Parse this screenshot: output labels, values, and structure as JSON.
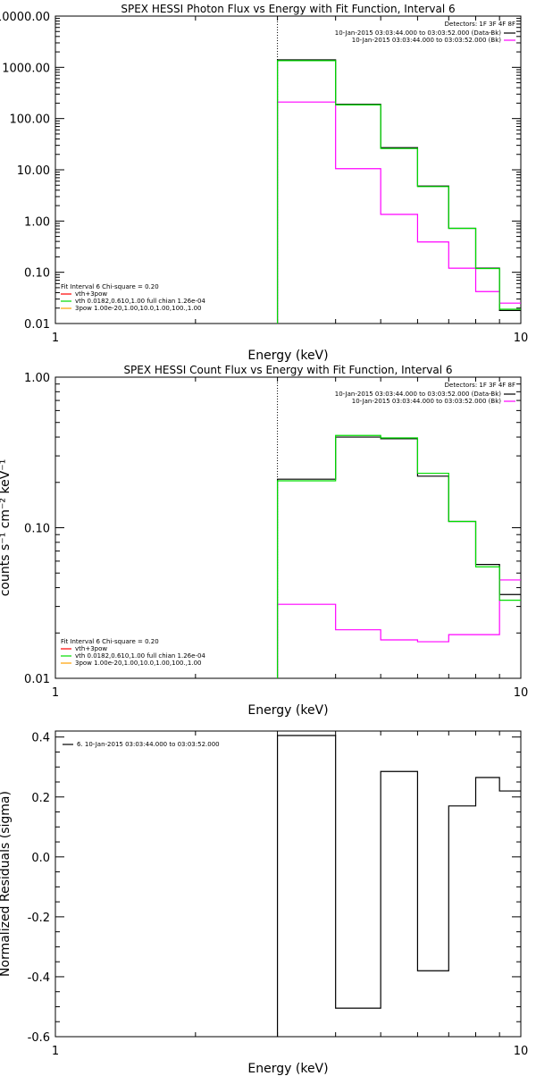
{
  "chart_data": [
    {
      "type": "line",
      "title": "SPEX HESSI Photon Flux vs Energy with Fit Function, Interval 6",
      "xlabel": "Energy (keV)",
      "ylabel": "",
      "xscale": "log",
      "yscale": "log",
      "xlim": [
        1,
        10
      ],
      "ylim": [
        0.01,
        10000
      ],
      "x_ticks": [
        {
          "v": 1,
          "label": "1"
        },
        {
          "v": 10,
          "label": "10"
        }
      ],
      "y_ticks": [
        {
          "v": 10000,
          "label": "10000.00"
        },
        {
          "v": 1000,
          "label": "1000.00"
        },
        {
          "v": 100,
          "label": "100.00"
        },
        {
          "v": 10,
          "label": "10.00"
        },
        {
          "v": 1,
          "label": "1.00"
        },
        {
          "v": 0.1,
          "label": "0.10"
        },
        {
          "v": 0.01,
          "label": "0.01"
        }
      ],
      "vline_x": 3,
      "bin_edges": [
        3,
        4,
        5,
        6,
        7,
        8,
        9,
        10
      ],
      "series": [
        {
          "name": "10-Jan-2015 03:03:44.000 to 03:03:52.000 (Data-Bk)",
          "color": "#000000",
          "values": [
            1400,
            190,
            27,
            4.8,
            0.72,
            0.12,
            0.018
          ]
        },
        {
          "name": "10-Jan-2015 03:03:44.000 to 03:03:52.000 (Bk)",
          "color": "#ff00ff",
          "values": [
            210,
            10.5,
            1.35,
            0.39,
            0.12,
            0.042,
            0.025
          ]
        },
        {
          "name": "vth 0.0182,0.610,1.00  full chian 1.26e-04",
          "color": "#00dd00",
          "values": [
            1350,
            185,
            26,
            4.7,
            0.72,
            0.118,
            0.019
          ]
        }
      ],
      "legend_topright": {
        "header": "Detectors: 1F 3F 4F 8F",
        "items": [
          {
            "text": "10-Jan-2015 03:03:44.000 to 03:03:52.000 (Data-Bk)",
            "color": "#000000"
          },
          {
            "text": "10-Jan-2015 03:03:44.000 to 03:03:52.000 (Bk)",
            "color": "#ff00ff"
          }
        ]
      },
      "legend_bottomleft": {
        "header": "Fit Interval 6   Chi-square = 0.20",
        "items": [
          {
            "text": "vth+3pow",
            "color": "#ff0000"
          },
          {
            "text": "vth 0.0182,0.610,1.00  full chian 1.26e-04",
            "color": "#00dd00"
          },
          {
            "text": "3pow 1.00e-20,1.00,10.0,1.00,100.,1.00",
            "color": "#ffa000"
          }
        ]
      }
    },
    {
      "type": "line",
      "title": "SPEX HESSI Count Flux vs Energy with Fit Function, Interval 6",
      "xlabel": "Energy (keV)",
      "ylabel": "counts s⁻¹ cm⁻² keV⁻¹",
      "xscale": "log",
      "yscale": "log",
      "xlim": [
        1,
        10
      ],
      "ylim": [
        0.01,
        1
      ],
      "x_ticks": [
        {
          "v": 1,
          "label": "1"
        },
        {
          "v": 10,
          "label": "10"
        }
      ],
      "y_ticks": [
        {
          "v": 1,
          "label": "1.00"
        },
        {
          "v": 0.1,
          "label": "0.10"
        },
        {
          "v": 0.01,
          "label": "0.01"
        }
      ],
      "vline_x": 3,
      "bin_edges": [
        3,
        4,
        5,
        6,
        7,
        8,
        9,
        10
      ],
      "series": [
        {
          "name": "10-Jan-2015 03:03:44.000 to 03:03:52.000 (Data-Bk)",
          "color": "#000000",
          "values": [
            0.21,
            0.4,
            0.39,
            0.22,
            0.11,
            0.057,
            0.036
          ]
        },
        {
          "name": "10-Jan-2015 03:03:44.000 to 03:03:52.000 (Bk)",
          "color": "#ff00ff",
          "values": [
            0.031,
            0.021,
            0.018,
            0.0175,
            0.0195,
            0.0195,
            0.045
          ]
        },
        {
          "name": "vth 0.0182,0.610,1.00  full chian 1.26e-04",
          "color": "#00dd00",
          "values": [
            0.205,
            0.41,
            0.395,
            0.23,
            0.11,
            0.055,
            0.033
          ]
        }
      ],
      "legend_topright": {
        "header": "Detectors: 1F 3F 4F 8F",
        "items": [
          {
            "text": "10-Jan-2015 03:03:44.000 to 03:03:52.000 (Data-Bk)",
            "color": "#000000"
          },
          {
            "text": "10-Jan-2015 03:03:44.000 to 03:03:52.000 (Bk)",
            "color": "#ff00ff"
          }
        ]
      },
      "legend_bottomleft": {
        "header": "Fit Interval 6   Chi-square = 0.20",
        "items": [
          {
            "text": "vth+3pow",
            "color": "#ff0000"
          },
          {
            "text": "vth 0.0182,0.610,1.00  full chian 1.26e-04",
            "color": "#00dd00"
          },
          {
            "text": "3pow 1.00e-20,1.00,10.0,1.00,100.,1.00",
            "color": "#ffa000"
          }
        ]
      }
    },
    {
      "type": "line",
      "title": "",
      "xlabel": "Energy (keV)",
      "ylabel": "Normalized Residuals (sigma)",
      "xscale": "log",
      "yscale": "linear",
      "xlim": [
        1,
        10
      ],
      "ylim": [
        -0.6,
        0.42
      ],
      "x_ticks": [
        {
          "v": 1,
          "label": "1"
        },
        {
          "v": 10,
          "label": "10"
        }
      ],
      "y_ticks": [
        {
          "v": 0.4,
          "label": "0.4"
        },
        {
          "v": 0.2,
          "label": "0.2"
        },
        {
          "v": 0.0,
          "label": "0.0"
        },
        {
          "v": -0.2,
          "label": "-0.2"
        },
        {
          "v": -0.4,
          "label": "-0.4"
        },
        {
          "v": -0.6,
          "label": "-0.6"
        }
      ],
      "bin_edges": [
        3,
        4,
        5,
        6,
        7,
        8,
        9,
        10
      ],
      "series": [
        {
          "name": "6. 10-Jan-2015 03:03:44.000 to 03:03:52.000",
          "color": "#000000",
          "values": [
            0.405,
            -0.505,
            0.285,
            -0.38,
            0.17,
            0.265,
            0.22
          ]
        }
      ],
      "legend_topleft": {
        "items": [
          {
            "text": "6. 10-Jan-2015 03:03:44.000 to 03:03:52.000",
            "color": "#000000"
          }
        ]
      }
    }
  ]
}
